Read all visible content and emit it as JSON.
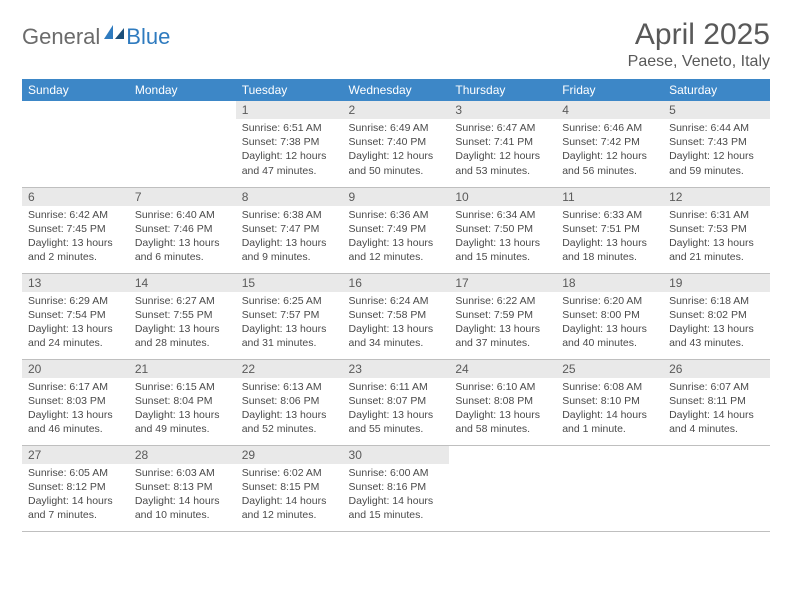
{
  "logo": {
    "text1": "General",
    "text2": "Blue"
  },
  "title": "April 2025",
  "location": "Paese, Veneto, Italy",
  "colors": {
    "header_bg": "#3d87c7",
    "header_text": "#ffffff",
    "daynum_bg": "#e9e9e9",
    "text_gray": "#595959",
    "border": "#bfbfbf",
    "logo_gray": "#6b6b6b",
    "logo_blue": "#2f7bbf"
  },
  "weekdays": [
    "Sunday",
    "Monday",
    "Tuesday",
    "Wednesday",
    "Thursday",
    "Friday",
    "Saturday"
  ],
  "weeks": [
    [
      null,
      null,
      {
        "n": "1",
        "sr": "Sunrise: 6:51 AM",
        "ss": "Sunset: 7:38 PM",
        "dl": "Daylight: 12 hours and 47 minutes."
      },
      {
        "n": "2",
        "sr": "Sunrise: 6:49 AM",
        "ss": "Sunset: 7:40 PM",
        "dl": "Daylight: 12 hours and 50 minutes."
      },
      {
        "n": "3",
        "sr": "Sunrise: 6:47 AM",
        "ss": "Sunset: 7:41 PM",
        "dl": "Daylight: 12 hours and 53 minutes."
      },
      {
        "n": "4",
        "sr": "Sunrise: 6:46 AM",
        "ss": "Sunset: 7:42 PM",
        "dl": "Daylight: 12 hours and 56 minutes."
      },
      {
        "n": "5",
        "sr": "Sunrise: 6:44 AM",
        "ss": "Sunset: 7:43 PM",
        "dl": "Daylight: 12 hours and 59 minutes."
      }
    ],
    [
      {
        "n": "6",
        "sr": "Sunrise: 6:42 AM",
        "ss": "Sunset: 7:45 PM",
        "dl": "Daylight: 13 hours and 2 minutes."
      },
      {
        "n": "7",
        "sr": "Sunrise: 6:40 AM",
        "ss": "Sunset: 7:46 PM",
        "dl": "Daylight: 13 hours and 6 minutes."
      },
      {
        "n": "8",
        "sr": "Sunrise: 6:38 AM",
        "ss": "Sunset: 7:47 PM",
        "dl": "Daylight: 13 hours and 9 minutes."
      },
      {
        "n": "9",
        "sr": "Sunrise: 6:36 AM",
        "ss": "Sunset: 7:49 PM",
        "dl": "Daylight: 13 hours and 12 minutes."
      },
      {
        "n": "10",
        "sr": "Sunrise: 6:34 AM",
        "ss": "Sunset: 7:50 PM",
        "dl": "Daylight: 13 hours and 15 minutes."
      },
      {
        "n": "11",
        "sr": "Sunrise: 6:33 AM",
        "ss": "Sunset: 7:51 PM",
        "dl": "Daylight: 13 hours and 18 minutes."
      },
      {
        "n": "12",
        "sr": "Sunrise: 6:31 AM",
        "ss": "Sunset: 7:53 PM",
        "dl": "Daylight: 13 hours and 21 minutes."
      }
    ],
    [
      {
        "n": "13",
        "sr": "Sunrise: 6:29 AM",
        "ss": "Sunset: 7:54 PM",
        "dl": "Daylight: 13 hours and 24 minutes."
      },
      {
        "n": "14",
        "sr": "Sunrise: 6:27 AM",
        "ss": "Sunset: 7:55 PM",
        "dl": "Daylight: 13 hours and 28 minutes."
      },
      {
        "n": "15",
        "sr": "Sunrise: 6:25 AM",
        "ss": "Sunset: 7:57 PM",
        "dl": "Daylight: 13 hours and 31 minutes."
      },
      {
        "n": "16",
        "sr": "Sunrise: 6:24 AM",
        "ss": "Sunset: 7:58 PM",
        "dl": "Daylight: 13 hours and 34 minutes."
      },
      {
        "n": "17",
        "sr": "Sunrise: 6:22 AM",
        "ss": "Sunset: 7:59 PM",
        "dl": "Daylight: 13 hours and 37 minutes."
      },
      {
        "n": "18",
        "sr": "Sunrise: 6:20 AM",
        "ss": "Sunset: 8:00 PM",
        "dl": "Daylight: 13 hours and 40 minutes."
      },
      {
        "n": "19",
        "sr": "Sunrise: 6:18 AM",
        "ss": "Sunset: 8:02 PM",
        "dl": "Daylight: 13 hours and 43 minutes."
      }
    ],
    [
      {
        "n": "20",
        "sr": "Sunrise: 6:17 AM",
        "ss": "Sunset: 8:03 PM",
        "dl": "Daylight: 13 hours and 46 minutes."
      },
      {
        "n": "21",
        "sr": "Sunrise: 6:15 AM",
        "ss": "Sunset: 8:04 PM",
        "dl": "Daylight: 13 hours and 49 minutes."
      },
      {
        "n": "22",
        "sr": "Sunrise: 6:13 AM",
        "ss": "Sunset: 8:06 PM",
        "dl": "Daylight: 13 hours and 52 minutes."
      },
      {
        "n": "23",
        "sr": "Sunrise: 6:11 AM",
        "ss": "Sunset: 8:07 PM",
        "dl": "Daylight: 13 hours and 55 minutes."
      },
      {
        "n": "24",
        "sr": "Sunrise: 6:10 AM",
        "ss": "Sunset: 8:08 PM",
        "dl": "Daylight: 13 hours and 58 minutes."
      },
      {
        "n": "25",
        "sr": "Sunrise: 6:08 AM",
        "ss": "Sunset: 8:10 PM",
        "dl": "Daylight: 14 hours and 1 minute."
      },
      {
        "n": "26",
        "sr": "Sunrise: 6:07 AM",
        "ss": "Sunset: 8:11 PM",
        "dl": "Daylight: 14 hours and 4 minutes."
      }
    ],
    [
      {
        "n": "27",
        "sr": "Sunrise: 6:05 AM",
        "ss": "Sunset: 8:12 PM",
        "dl": "Daylight: 14 hours and 7 minutes."
      },
      {
        "n": "28",
        "sr": "Sunrise: 6:03 AM",
        "ss": "Sunset: 8:13 PM",
        "dl": "Daylight: 14 hours and 10 minutes."
      },
      {
        "n": "29",
        "sr": "Sunrise: 6:02 AM",
        "ss": "Sunset: 8:15 PM",
        "dl": "Daylight: 14 hours and 12 minutes."
      },
      {
        "n": "30",
        "sr": "Sunrise: 6:00 AM",
        "ss": "Sunset: 8:16 PM",
        "dl": "Daylight: 14 hours and 15 minutes."
      },
      null,
      null,
      null
    ]
  ]
}
